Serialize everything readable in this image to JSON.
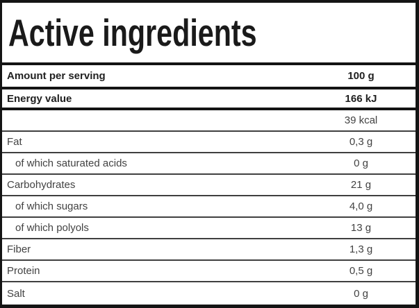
{
  "title": "Active ingredients",
  "table": {
    "rows": [
      {
        "label": "Amount per serving",
        "value": "100 g"
      },
      {
        "label": "Energy value",
        "value": "166 kJ"
      },
      {
        "label": "",
        "value": "39 kcal"
      },
      {
        "label": "Fat",
        "value": "0,3 g"
      },
      {
        "label": "of which saturated acids",
        "value": "0 g"
      },
      {
        "label": "Carbohydrates",
        "value": "21 g"
      },
      {
        "label": "of which sugars",
        "value": "4,0 g"
      },
      {
        "label": "of which polyols",
        "value": "13 g"
      },
      {
        "label": "Fiber",
        "value": "1,3 g"
      },
      {
        "label": "Protein",
        "value": "0,5 g"
      },
      {
        "label": "Salt",
        "value": "0 g"
      }
    ]
  },
  "colors": {
    "border_black": "#141414",
    "thin_line": "#3f3f3f",
    "bold_text": "#1f1f1f",
    "regular_text": "#424242",
    "background": "#ffffff"
  }
}
